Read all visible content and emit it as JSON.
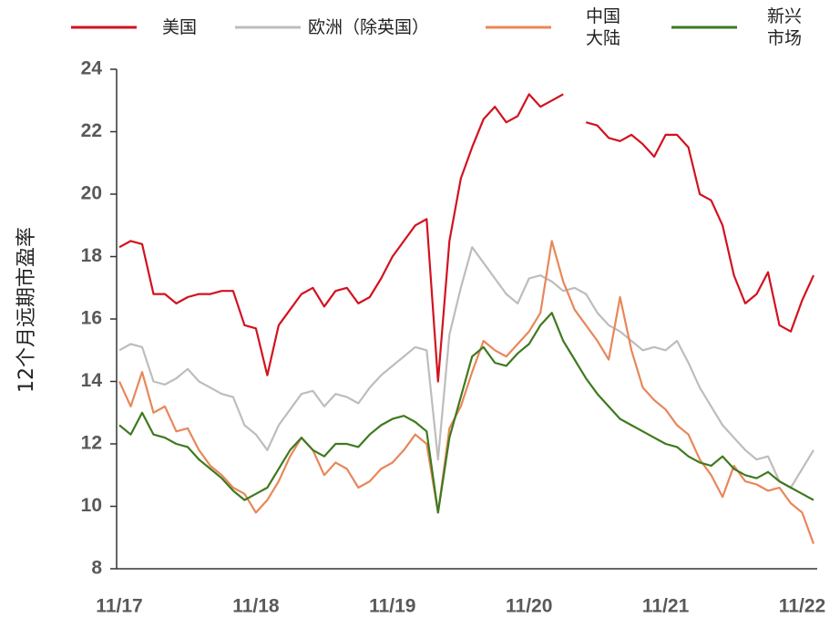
{
  "chart_data": {
    "type": "line",
    "y_axis_label": "12个月远期市盈率",
    "categories": [
      "11/17",
      null,
      null,
      null,
      null,
      null,
      null,
      null,
      null,
      null,
      null,
      null,
      "11/18",
      null,
      null,
      null,
      null,
      null,
      null,
      null,
      null,
      null,
      null,
      null,
      "11/19",
      null,
      null,
      null,
      null,
      null,
      null,
      null,
      null,
      null,
      null,
      null,
      "11/20",
      null,
      null,
      null,
      null,
      null,
      null,
      null,
      null,
      null,
      null,
      null,
      "11/21",
      null,
      null,
      null,
      null,
      null,
      null,
      null,
      null,
      null,
      null,
      null,
      "11/22",
      null
    ],
    "ylim": [
      8,
      24
    ],
    "yticks": [
      8,
      10,
      12,
      14,
      16,
      18,
      20,
      22,
      24
    ],
    "series": [
      {
        "name": "美国",
        "color": "#d2121f",
        "values": [
          18.3,
          18.5,
          18.4,
          16.8,
          16.8,
          16.5,
          16.7,
          16.8,
          16.8,
          16.9,
          16.9,
          15.8,
          15.7,
          14.2,
          15.8,
          16.3,
          16.8,
          17.0,
          16.4,
          16.9,
          17.0,
          16.5,
          16.7,
          17.3,
          18.0,
          18.5,
          19.0,
          19.2,
          14.0,
          18.5,
          20.5,
          21.5,
          22.4,
          22.8,
          22.3,
          22.5,
          23.2,
          22.8,
          23.0,
          23.2,
          null,
          22.3,
          22.2,
          21.8,
          21.7,
          21.9,
          21.6,
          21.2,
          21.9,
          21.9,
          21.5,
          20.0,
          19.8,
          19.0,
          17.4,
          16.5,
          16.8,
          17.5,
          15.8,
          15.6,
          16.6,
          17.4
        ]
      },
      {
        "name": "欧洲（除英国）",
        "color": "#bdbdbd",
        "values": [
          15.0,
          15.2,
          15.1,
          14.0,
          13.9,
          14.1,
          14.4,
          14.0,
          13.8,
          13.6,
          13.5,
          12.6,
          12.3,
          11.8,
          12.6,
          13.1,
          13.6,
          13.7,
          13.2,
          13.6,
          13.5,
          13.3,
          13.8,
          14.2,
          14.5,
          14.8,
          15.1,
          15.0,
          11.5,
          15.5,
          17.0,
          18.3,
          17.8,
          17.3,
          16.8,
          16.5,
          17.3,
          17.4,
          17.2,
          16.9,
          17.0,
          16.8,
          16.2,
          15.8,
          15.6,
          15.3,
          15.0,
          15.1,
          15.0,
          15.3,
          14.6,
          13.8,
          13.2,
          12.6,
          12.2,
          11.8,
          11.5,
          11.6,
          10.8,
          10.6,
          11.2,
          11.8
        ]
      },
      {
        "name": "中国大陆",
        "color": "#e8875a",
        "values": [
          14.0,
          13.2,
          14.3,
          13.0,
          13.2,
          12.4,
          12.5,
          11.8,
          11.3,
          11.0,
          10.6,
          10.4,
          9.8,
          10.2,
          10.8,
          11.6,
          12.2,
          11.8,
          11.0,
          11.4,
          11.2,
          10.6,
          10.8,
          11.2,
          11.4,
          11.8,
          12.3,
          12.0,
          9.8,
          12.5,
          13.2,
          14.3,
          15.3,
          15.0,
          14.8,
          15.2,
          15.6,
          16.2,
          18.5,
          17.2,
          16.3,
          15.8,
          15.3,
          14.7,
          16.7,
          15.0,
          13.8,
          13.4,
          13.1,
          12.6,
          12.3,
          11.5,
          11.0,
          10.3,
          11.3,
          10.8,
          10.7,
          10.5,
          10.6,
          10.1,
          9.8,
          8.8
        ]
      },
      {
        "name": "新兴市场",
        "color": "#3e7a1e",
        "values": [
          12.6,
          12.3,
          13.0,
          12.3,
          12.2,
          12.0,
          11.9,
          11.5,
          11.2,
          10.9,
          10.5,
          10.2,
          10.4,
          10.6,
          11.2,
          11.8,
          12.2,
          11.8,
          11.6,
          12.0,
          12.0,
          11.9,
          12.3,
          12.6,
          12.8,
          12.9,
          12.7,
          12.4,
          9.8,
          12.2,
          13.5,
          14.8,
          15.1,
          14.6,
          14.5,
          14.9,
          15.2,
          15.8,
          16.2,
          15.3,
          14.7,
          14.1,
          13.6,
          13.2,
          12.8,
          12.6,
          12.4,
          12.2,
          12.0,
          11.9,
          11.6,
          11.4,
          11.3,
          11.6,
          11.2,
          11.0,
          10.9,
          11.1,
          10.8,
          10.6,
          10.4,
          10.2
        ]
      }
    ]
  }
}
